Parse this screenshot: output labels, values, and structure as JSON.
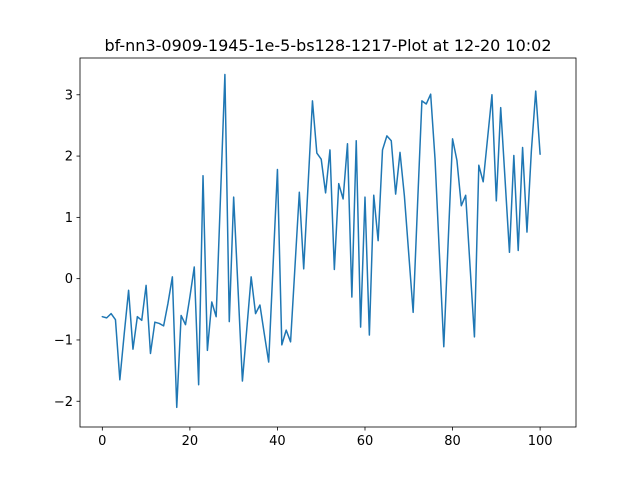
{
  "figure": {
    "background": "#ffffff"
  },
  "chart_data": {
    "type": "line",
    "title": "bf-nn3-0909-1945-1e-5-bs128-1217-Plot at 12-20 10:02",
    "xlabel": "",
    "ylabel": "",
    "grid": false,
    "legend": "none",
    "line_color": "#1f77b4",
    "line_width": 1.5,
    "spine_color": "#000000",
    "x_start": 0,
    "x_step": 1,
    "x_ticks": [
      0,
      20,
      40,
      60,
      80,
      100
    ],
    "y_ticks": [
      -2,
      -1,
      0,
      1,
      2,
      3
    ],
    "xlim": [
      -5.1,
      108.2
    ],
    "ylim": [
      -2.42,
      3.6
    ],
    "values": [
      -0.62,
      -0.64,
      -0.57,
      -0.67,
      -1.65,
      -0.9,
      -0.19,
      -1.15,
      -0.62,
      -0.68,
      -0.11,
      -1.22,
      -0.71,
      -0.73,
      -0.77,
      -0.4,
      0.03,
      -2.1,
      -0.6,
      -0.75,
      -0.3,
      0.19,
      -1.73,
      1.68,
      -1.17,
      -0.38,
      -0.62,
      1.35,
      3.33,
      -0.7,
      1.33,
      -0.17,
      -1.67,
      -0.82,
      0.03,
      -0.57,
      -0.43,
      -0.9,
      -1.36,
      0.21,
      1.78,
      -1.08,
      -0.84,
      -1.03,
      0.19,
      1.41,
      0.16,
      1.53,
      2.9,
      2.05,
      1.95,
      1.4,
      2.1,
      0.15,
      1.55,
      1.3,
      2.2,
      -0.3,
      2.25,
      -0.79,
      1.33,
      -0.92,
      1.36,
      0.62,
      2.1,
      2.33,
      2.25,
      1.38,
      2.06,
      1.35,
      0.4,
      -0.55,
      1.2,
      2.9,
      2.85,
      3.01,
      1.95,
      0.4,
      -1.11,
      0.6,
      2.28,
      1.93,
      1.19,
      1.36,
      0.2,
      -0.95,
      1.85,
      1.58,
      2.29,
      3.0,
      1.27,
      2.79,
      1.61,
      0.43,
      2.01,
      0.46,
      2.14,
      0.76,
      2.08,
      3.06,
      2.03
    ]
  }
}
